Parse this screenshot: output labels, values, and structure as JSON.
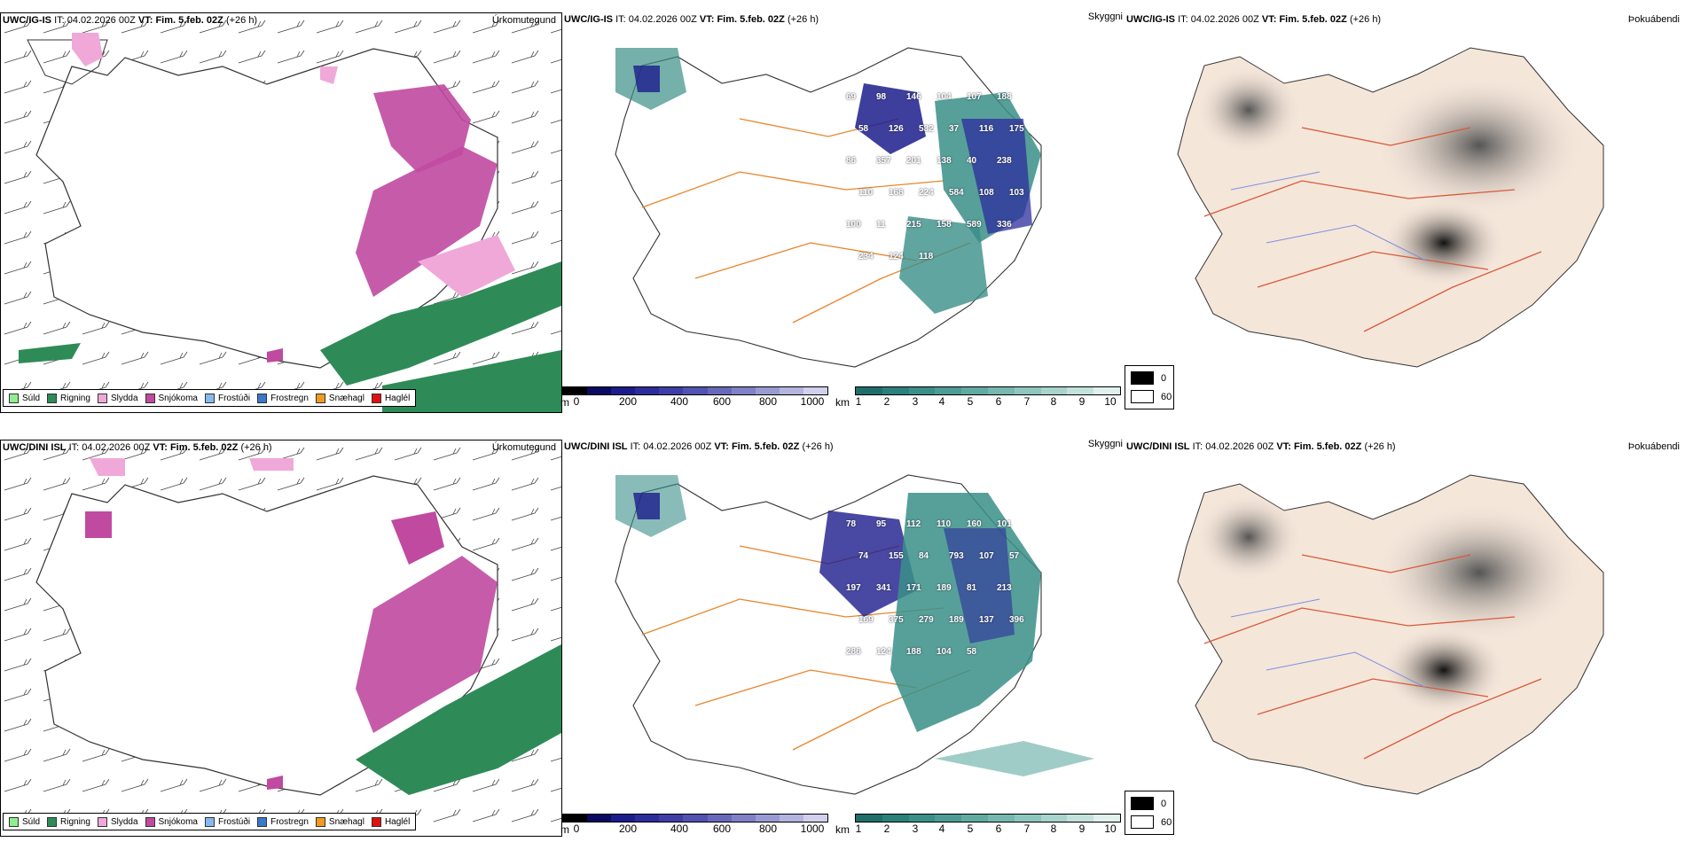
{
  "rows": [
    {
      "model": "UWC/IG-IS",
      "it_label": "IT:",
      "it_value": "04.02.2026 00Z",
      "vt_label": "VT:",
      "vt_value": "Fim. 5.feb. 02Z",
      "lead": "(+26 h)",
      "precip_title": "Úrkomutegund",
      "vis_title": "Skyggni",
      "cloud_title": "Þokuábendi"
    },
    {
      "model": "UWC/DINI ISL",
      "it_label": "IT:",
      "it_value": "04.02.2026 00Z",
      "vt_label": "VT:",
      "vt_value": "Fim. 5.feb. 02Z",
      "lead": "(+26 h)",
      "precip_title": "Úrkomutegund",
      "vis_title": "Skyggni",
      "cloud_title": "Þokuábendi"
    }
  ],
  "precip_legend": [
    {
      "label": "Súld",
      "color": "#90ee90"
    },
    {
      "label": "Rigning",
      "color": "#2e8b57"
    },
    {
      "label": "Slydda",
      "color": "#f0a8d8"
    },
    {
      "label": "Snjókoma",
      "color": "#c04aa0"
    },
    {
      "label": "Frostúði",
      "color": "#87b8f0"
    },
    {
      "label": "Frostregn",
      "color": "#3a78c8"
    },
    {
      "label": "Snæhagl",
      "color": "#f09a20"
    },
    {
      "label": "Haglél",
      "color": "#e01010"
    }
  ],
  "ceiling_bar": {
    "unit": "m",
    "ticks": [
      "0",
      "200",
      "400",
      "600",
      "800",
      "1000"
    ],
    "colors": [
      "#000000",
      "#0a0a60",
      "#1c1c8c",
      "#2c2c9c",
      "#3e3ea6",
      "#5252b0",
      "#6868ba",
      "#8080c6",
      "#9a9ad2",
      "#b4b4de",
      "#d0d0ec"
    ]
  },
  "vis_bar": {
    "unit": "km",
    "ticks": [
      "1",
      "2",
      "3",
      "4",
      "5",
      "6",
      "7",
      "8",
      "9",
      "10"
    ],
    "colors": [
      "#1f6e6a",
      "#2a807a",
      "#3a8f88",
      "#4c9c95",
      "#60aaa2",
      "#76b8b0",
      "#8ec6be",
      "#a8d4cc",
      "#c4e2dc",
      "#e0f0ec"
    ]
  },
  "cloud_key": {
    "dark_label": "0",
    "light_label": "60"
  },
  "numbers_top": [
    "69",
    "98",
    "146",
    "104",
    "107",
    "188",
    "58",
    "126",
    "532",
    "37",
    "116",
    "175",
    "86",
    "357",
    "201",
    "138",
    "40",
    "238",
    "110",
    "168",
    "224",
    "584",
    "108",
    "103",
    "100",
    "11",
    "215",
    "158",
    "589",
    "336",
    "234",
    "124",
    "118"
  ],
  "numbers_bottom": [
    "78",
    "95",
    "112",
    "110",
    "160",
    "101",
    "74",
    "155",
    "84",
    "793",
    "107",
    "57",
    "197",
    "341",
    "171",
    "189",
    "81",
    "213",
    "169",
    "375",
    "279",
    "189",
    "137",
    "396",
    "286",
    "124",
    "188",
    "104",
    "58"
  ]
}
